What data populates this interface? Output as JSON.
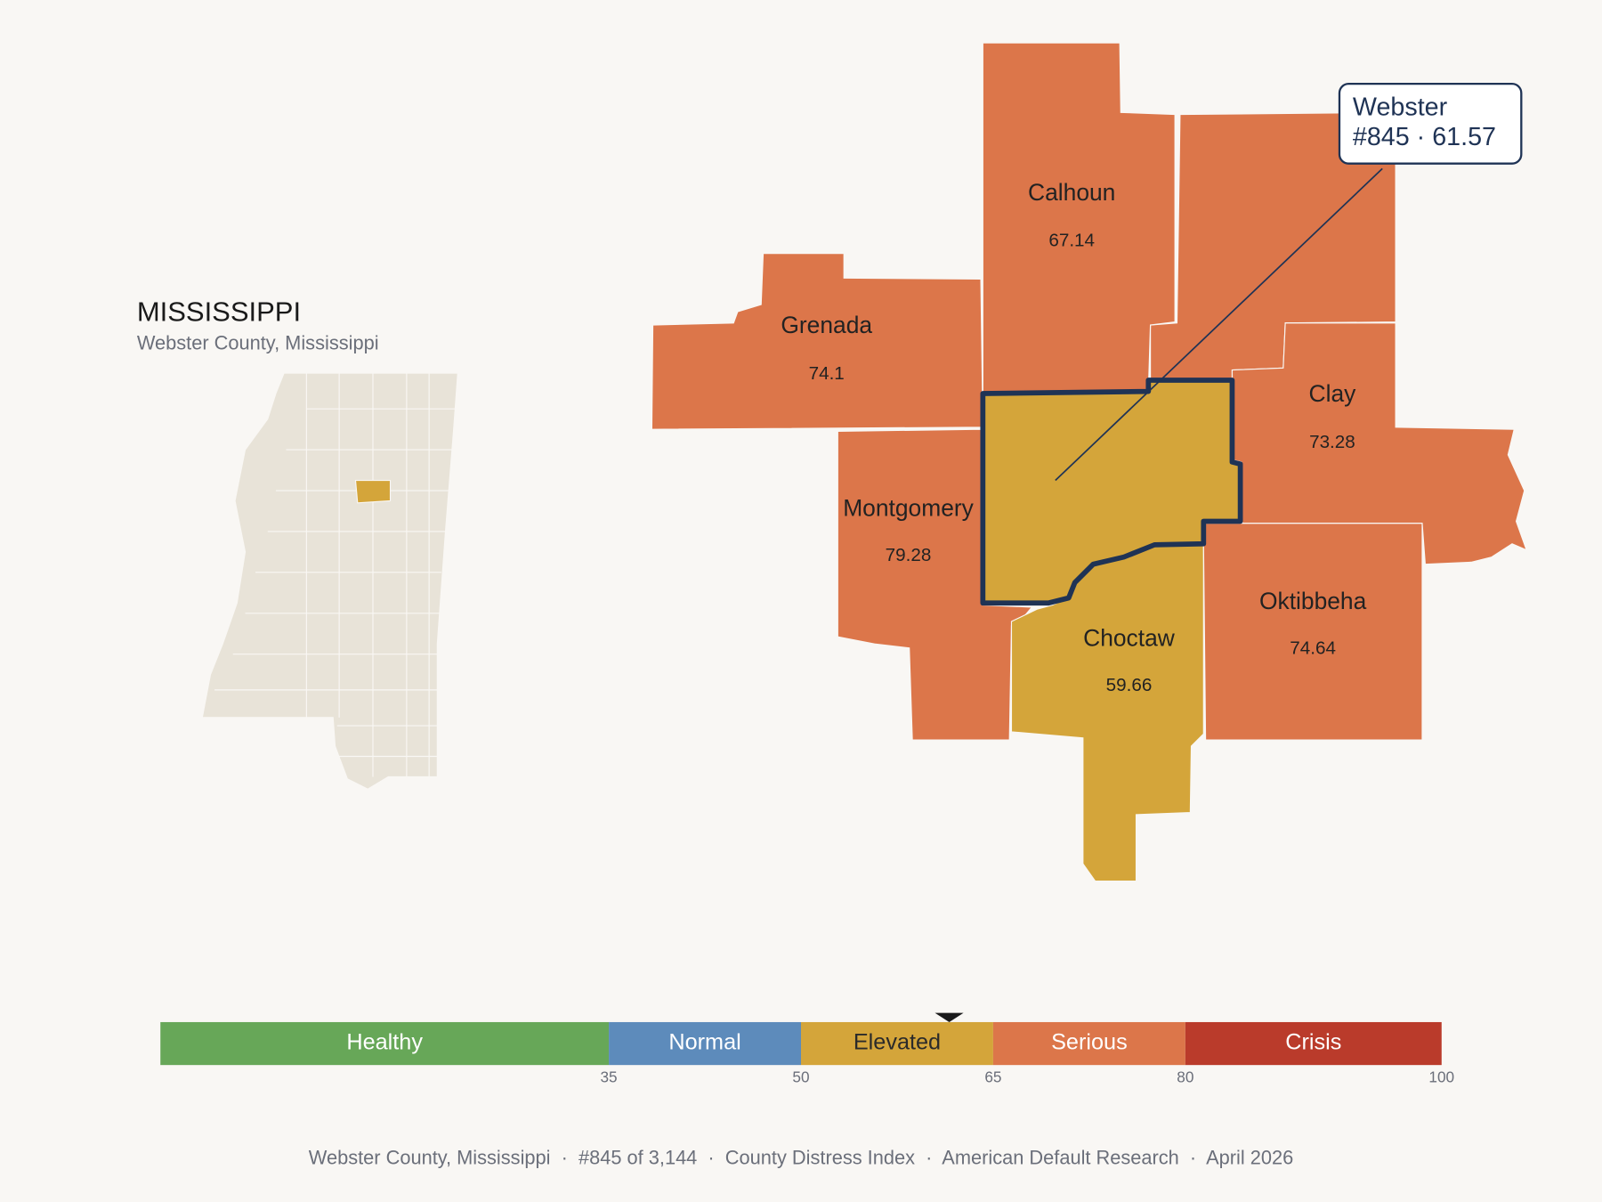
{
  "inset": {
    "title": "MISSISSIPPI",
    "subtitle": "Webster County, Mississippi"
  },
  "counties": [
    {
      "name": "Calhoun",
      "value": 67.14
    },
    {
      "name": "Grenada",
      "value": 74.1
    },
    {
      "name": "Clay",
      "value": 73.28
    },
    {
      "name": "Montgomery",
      "value": 79.28
    },
    {
      "name": "Choctaw",
      "value": 59.66
    },
    {
      "name": "Oktibbeha",
      "value": 74.64
    }
  ],
  "callout": {
    "name": "Webster",
    "detail": "#845 · 61.57"
  },
  "scale": {
    "xlim": [
      0,
      100
    ],
    "xticks": [
      35,
      50,
      65,
      80,
      100
    ],
    "marker": 61.57,
    "segments": [
      {
        "label": "Healthy",
        "color": "#67a758",
        "text_color": "#ffffff"
      },
      {
        "label": "Normal",
        "color": "#5d8bbb",
        "text_color": "#ffffff"
      },
      {
        "label": "Elevated",
        "color": "#d4a53a",
        "text_color": "#2a2a2a"
      },
      {
        "label": "Serious",
        "color": "#dc764a",
        "text_color": "#ffffff"
      },
      {
        "label": "Crisis",
        "color": "#ba3b2b",
        "text_color": "#ffffff"
      }
    ]
  },
  "footer": "Webster County, Mississippi  ·  #845 of 3,144  ·  County Distress Index  ·  American Default Research  ·  April 2026"
}
